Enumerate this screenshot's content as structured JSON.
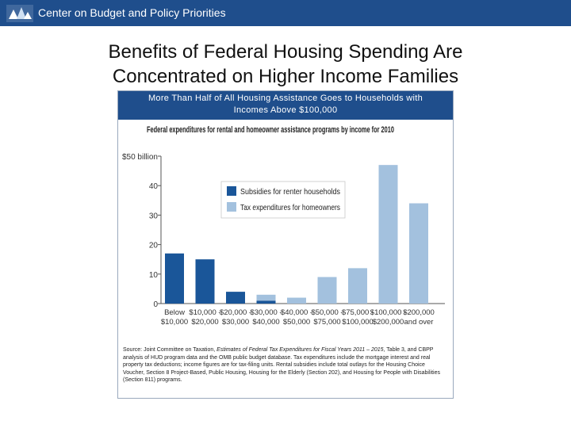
{
  "header": {
    "org_name": "Center on Budget and Policy Priorities",
    "brand_color": "#1f4e8c"
  },
  "slide": {
    "title_line1": "Benefits of Federal Housing Spending Are",
    "title_line2": "Concentrated on Higher Income Families"
  },
  "card": {
    "subtitle_line1": "More Than Half of All Housing Assistance Goes to Households with",
    "subtitle_line2": "Incomes Above $100,000"
  },
  "source": {
    "part1": "Source: Joint Committee on Taxation, ",
    "italic": "Estimates of Federal Tax Expenditures for Fiscal Years 2011 – 2015",
    "part2": ", Table 3, and CBPP analysis of HUD program data and the OMB public budget database. Tax expenditures include the mortgage interest and real property tax deductions; income figures are for tax-filing units. Rental subsidies include total outlays for the Housing Choice Voucher, Section 8 Project-Based, Public Housing, Housing for the Elderly (Section 202), and Housing for People with Disabilities (Section 811) programs."
  },
  "chart_data": {
    "type": "bar",
    "title": "Federal expenditures for rental and homeowner assistance programs by income for 2010",
    "categories": [
      [
        "Below",
        "$10,000"
      ],
      [
        "$10,000 -",
        "$20,000"
      ],
      [
        "$20,000 -",
        "$30,000"
      ],
      [
        "$30,000 -",
        "$40,000"
      ],
      [
        "$40,000 -",
        "$50,000"
      ],
      [
        "$50,000 -",
        "$75,000"
      ],
      [
        "$75,000 -",
        "$100,000"
      ],
      [
        "$100,000 -",
        "$200,000"
      ],
      [
        "$200,000",
        "and over"
      ]
    ],
    "series": [
      {
        "name": "Subsidies for renter households",
        "color": "#1a5699",
        "values": [
          17,
          15,
          4,
          1,
          0,
          0,
          0,
          0,
          0
        ]
      },
      {
        "name": "Tax expenditures for homeowners",
        "color": "#a3c1de",
        "values": [
          0,
          0,
          0,
          2,
          2,
          9,
          12,
          47,
          34
        ]
      }
    ],
    "yticks": [
      "0",
      "10",
      "20",
      "30",
      "40",
      "$50 billion"
    ],
    "ytick_values": [
      0,
      10,
      20,
      30,
      40,
      50
    ],
    "ylim": [
      0,
      50
    ],
    "stacked": true,
    "legend_position": "upper-center",
    "grid": false
  }
}
